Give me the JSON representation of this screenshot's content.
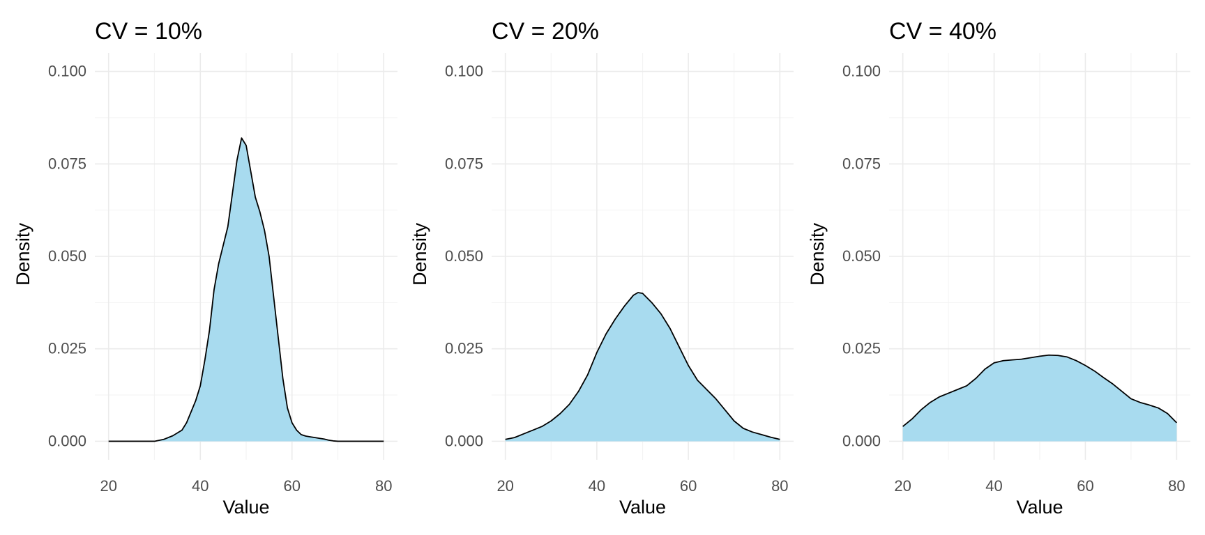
{
  "chart_data": [
    {
      "type": "area",
      "title": "CV = 10%",
      "xlabel": "Value",
      "ylabel": "Density",
      "xlim": [
        17,
        83
      ],
      "ylim": [
        -0.005,
        0.105
      ],
      "x_ticks": [
        20,
        40,
        60,
        80
      ],
      "y_ticks": [
        0.0,
        0.025,
        0.05,
        0.075,
        0.1
      ],
      "x_tick_labels": [
        "20",
        "40",
        "60",
        "80"
      ],
      "y_tick_labels": [
        "0.000",
        "0.025",
        "0.050",
        "0.075",
        "0.100"
      ],
      "grid": true,
      "fill_color": "#a8dbef",
      "line_color": "#000000",
      "series": [
        {
          "x": [
            20,
            25,
            30,
            32,
            34,
            36,
            37,
            38,
            39,
            40,
            41,
            42,
            43,
            44,
            45,
            46,
            47,
            48,
            49,
            50,
            51,
            52,
            53,
            54,
            55,
            56,
            57,
            58,
            59,
            60,
            61,
            62,
            63,
            64,
            65,
            66,
            67,
            68,
            69,
            70,
            75,
            80
          ],
          "y": [
            0.0,
            0.0,
            0.0,
            0.0005,
            0.0015,
            0.003,
            0.005,
            0.008,
            0.011,
            0.015,
            0.022,
            0.03,
            0.041,
            0.048,
            0.053,
            0.058,
            0.067,
            0.076,
            0.082,
            0.08,
            0.073,
            0.066,
            0.062,
            0.057,
            0.05,
            0.039,
            0.028,
            0.017,
            0.009,
            0.005,
            0.003,
            0.0018,
            0.0014,
            0.0012,
            0.001,
            0.0008,
            0.0006,
            0.0003,
            0.0001,
            0.0,
            0.0,
            0.0
          ]
        }
      ]
    },
    {
      "type": "area",
      "title": "CV = 20%",
      "xlabel": "Value",
      "ylabel": "Density",
      "xlim": [
        17,
        83
      ],
      "ylim": [
        -0.005,
        0.105
      ],
      "x_ticks": [
        20,
        40,
        60,
        80
      ],
      "y_ticks": [
        0.0,
        0.025,
        0.05,
        0.075,
        0.1
      ],
      "x_tick_labels": [
        "20",
        "40",
        "60",
        "80"
      ],
      "y_tick_labels": [
        "0.000",
        "0.025",
        "0.050",
        "0.075",
        "0.100"
      ],
      "grid": true,
      "fill_color": "#a8dbef",
      "line_color": "#000000",
      "series": [
        {
          "x": [
            20,
            22,
            24,
            26,
            28,
            30,
            32,
            34,
            36,
            38,
            40,
            42,
            44,
            46,
            48,
            49,
            50,
            52,
            54,
            56,
            58,
            60,
            62,
            64,
            66,
            68,
            70,
            72,
            74,
            76,
            78,
            80
          ],
          "y": [
            0.0005,
            0.001,
            0.002,
            0.003,
            0.004,
            0.0055,
            0.0075,
            0.01,
            0.0135,
            0.018,
            0.024,
            0.029,
            0.033,
            0.0365,
            0.0395,
            0.0402,
            0.04,
            0.0375,
            0.0345,
            0.0305,
            0.0255,
            0.0205,
            0.0165,
            0.014,
            0.0115,
            0.0085,
            0.0055,
            0.0035,
            0.0025,
            0.0018,
            0.0011,
            0.0005
          ]
        }
      ]
    },
    {
      "type": "area",
      "title": "CV = 40%",
      "xlabel": "Value",
      "ylabel": "Density",
      "xlim": [
        17,
        83
      ],
      "ylim": [
        -0.005,
        0.105
      ],
      "x_ticks": [
        20,
        40,
        60,
        80
      ],
      "y_ticks": [
        0.0,
        0.025,
        0.05,
        0.075,
        0.1
      ],
      "x_tick_labels": [
        "20",
        "40",
        "60",
        "80"
      ],
      "y_tick_labels": [
        "0.000",
        "0.025",
        "0.050",
        "0.075",
        "0.100"
      ],
      "grid": true,
      "fill_color": "#a8dbef",
      "line_color": "#000000",
      "series": [
        {
          "x": [
            20,
            22,
            24,
            26,
            28,
            30,
            32,
            34,
            36,
            38,
            40,
            42,
            44,
            46,
            48,
            50,
            52,
            54,
            56,
            58,
            60,
            62,
            64,
            66,
            68,
            70,
            72,
            74,
            76,
            78,
            80
          ],
          "y": [
            0.004,
            0.006,
            0.0085,
            0.0105,
            0.012,
            0.013,
            0.014,
            0.015,
            0.017,
            0.0195,
            0.0212,
            0.0218,
            0.022,
            0.0222,
            0.0226,
            0.023,
            0.0233,
            0.0232,
            0.0228,
            0.0218,
            0.0205,
            0.019,
            0.0172,
            0.0155,
            0.0135,
            0.0115,
            0.0105,
            0.0098,
            0.009,
            0.0075,
            0.005
          ]
        }
      ]
    }
  ]
}
